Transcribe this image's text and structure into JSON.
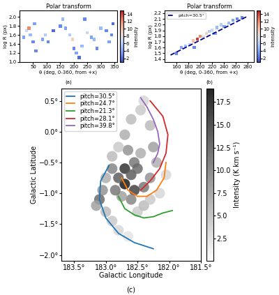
{
  "chart_data": [
    {
      "type": "scatter",
      "title": "Polar transform",
      "x_label": "θ (deg, 0-360, from +x)",
      "y_label": "log R (px)",
      "caption": "(a)",
      "xlim": [
        0,
        360
      ],
      "xticks": [
        50,
        100,
        150,
        200,
        250,
        300,
        350
      ],
      "ylim": [
        1.0,
        2.15
      ],
      "yticks": [
        1.0,
        1.2,
        1.4,
        1.6,
        1.8,
        2.0
      ],
      "points": {
        "x": [
          15,
          25,
          35,
          40,
          50,
          55,
          85,
          95,
          105,
          150,
          160,
          170,
          185,
          195,
          200,
          210,
          220,
          230,
          240,
          250,
          265,
          275,
          285,
          300,
          320,
          330,
          340,
          345,
          125,
          60
        ],
        "y": [
          1.55,
          1.7,
          1.75,
          1.6,
          1.45,
          1.85,
          1.5,
          1.6,
          1.45,
          1.8,
          1.95,
          1.75,
          1.6,
          1.5,
          1.3,
          1.2,
          1.1,
          1.35,
          1.95,
          1.65,
          1.55,
          1.5,
          1.3,
          1.75,
          1.7,
          1.45,
          1.6,
          1.85,
          1.7,
          1.25
        ],
        "intensity": [
          4,
          7,
          12,
          5,
          3,
          4,
          4,
          6,
          3,
          3,
          5,
          4,
          6,
          9,
          3,
          4,
          2,
          5,
          3,
          7,
          4,
          5,
          3,
          5,
          3,
          4,
          3,
          2,
          2,
          3
        ]
      },
      "colorbar": {
        "label": "Intensity",
        "range": [
          1,
          15
        ],
        "ticks": [
          2,
          4,
          6,
          8,
          10,
          12,
          14
        ]
      }
    },
    {
      "type": "scatter",
      "title": "Polar transform",
      "x_label": "θ (deg, 0-360, from +x)",
      "y_label": "log R (px)",
      "caption": "(b)",
      "xlim": [
        140,
        290
      ],
      "xticks": [
        160,
        180,
        200,
        220,
        240,
        260,
        280
      ],
      "ylim": [
        1.35,
        2.25
      ],
      "yticks": [
        1.4,
        1.5,
        1.6,
        1.7,
        1.8,
        1.9,
        2.0,
        2.1,
        2.2
      ],
      "points": {
        "x": [
          160,
          168,
          175,
          182,
          188,
          195,
          200,
          205,
          210,
          215,
          220,
          228,
          235,
          240,
          248,
          255,
          262,
          270,
          190,
          225
        ],
        "y": [
          1.5,
          1.6,
          1.62,
          1.65,
          1.72,
          1.75,
          1.8,
          1.78,
          1.85,
          1.88,
          1.9,
          1.95,
          2.0,
          1.97,
          2.03,
          2.08,
          2.1,
          2.12,
          1.6,
          1.85
        ],
        "intensity": [
          3,
          4,
          5,
          6,
          10,
          14,
          12,
          8,
          9,
          6,
          7,
          5,
          6,
          4,
          5,
          4,
          3,
          3,
          3,
          4
        ]
      },
      "series": [
        {
          "name": "pitch=30.5°",
          "color": "#00008b",
          "line_style": "dashed",
          "x": [
            150,
            280
          ],
          "y": [
            1.47,
            2.15
          ]
        }
      ],
      "legend": "upper left",
      "colorbar": {
        "label": "Intensity",
        "range": [
          1,
          15
        ],
        "ticks": [
          2,
          4,
          6,
          8,
          10,
          12,
          14
        ]
      }
    },
    {
      "type": "line",
      "x_label": "Galactic Longitude",
      "y_label": "Galactic Latitude",
      "caption": "(c)",
      "xlim": [
        183.7,
        181.5
      ],
      "xticks": [
        {
          "value": 183.5,
          "label": "183.5°"
        },
        {
          "value": 183.0,
          "label": "183.0°"
        },
        {
          "value": 182.5,
          "label": "182.5°"
        },
        {
          "value": 182.0,
          "label": "182.0°"
        },
        {
          "value": 181.5,
          "label": "181.5°"
        }
      ],
      "ylim": [
        -2.1,
        0.7
      ],
      "yticks": [
        {
          "value": -2.0,
          "label": "−2.0°"
        },
        {
          "value": -1.5,
          "label": "−1.5°"
        },
        {
          "value": -1.0,
          "label": "−1.0°"
        },
        {
          "value": -0.5,
          "label": "−0.5°"
        },
        {
          "value": 0.0,
          "label": "0.0°"
        },
        {
          "value": 0.5,
          "label": "0.5°"
        }
      ],
      "emission": {
        "x": [
          182.7,
          182.6,
          182.55,
          182.65,
          182.7,
          182.6,
          182.45,
          182.4,
          182.3,
          182.25,
          182.2,
          182.3,
          182.4,
          182.55,
          182.7,
          182.8,
          182.9,
          183.0,
          183.05,
          183.1,
          183.15,
          183.0,
          182.9,
          182.8,
          182.65,
          182.5,
          182.4,
          182.3,
          182.15,
          182.05,
          182.6,
          182.75,
          182.85,
          182.5,
          182.45,
          182.9,
          182.8
        ],
        "y": [
          -0.6,
          -0.7,
          -0.5,
          -0.3,
          -0.05,
          0.2,
          0.35,
          0.5,
          0.1,
          -0.25,
          -0.5,
          -0.75,
          -0.9,
          -0.95,
          -0.85,
          -0.75,
          -0.6,
          -0.75,
          -0.95,
          -1.1,
          -1.2,
          -1.3,
          -1.45,
          -1.6,
          -1.7,
          -1.3,
          -1.2,
          -1.1,
          -1.0,
          -0.7,
          -1.1,
          -1.05,
          -0.95,
          -0.6,
          -0.35,
          -0.4,
          -0.25
        ],
        "intensity": [
          15,
          12,
          10,
          8,
          6,
          5,
          4,
          3,
          5,
          7,
          6,
          8,
          10,
          14,
          17,
          12,
          9,
          6,
          8,
          11,
          7,
          5,
          4,
          3,
          2,
          4,
          5,
          4,
          3,
          3,
          9,
          7,
          10,
          11,
          6,
          5,
          4
        ]
      },
      "series": [
        {
          "name": "pitch=30.5°",
          "color": "#1f77b4",
          "x": [
            182.95,
            183.08,
            183.1,
            183.0,
            182.8,
            182.55,
            182.25
          ],
          "y": [
            -0.55,
            -0.8,
            -1.1,
            -1.4,
            -1.65,
            -1.8,
            -1.9
          ]
        },
        {
          "name": "pitch=24.7°",
          "color": "#ff7f0e",
          "x": [
            182.75,
            182.65,
            182.5,
            182.35,
            182.2,
            182.08,
            182.05
          ],
          "y": [
            -0.75,
            -0.95,
            -1.05,
            -1.05,
            -0.95,
            -0.75,
            -0.5
          ]
        },
        {
          "name": "pitch=21.3°",
          "color": "#2ca02c",
          "x": [
            182.8,
            182.7,
            182.55,
            182.4,
            182.25,
            182.1,
            181.95
          ],
          "y": [
            -1.05,
            -1.25,
            -1.35,
            -1.4,
            -1.38,
            -1.32,
            -1.28
          ]
        },
        {
          "name": "pitch=28.1°",
          "color": "#d62728",
          "x": [
            182.3,
            182.1,
            182.02,
            182.05,
            182.15,
            182.3,
            182.45
          ],
          "y": [
            0.5,
            0.25,
            -0.05,
            -0.35,
            -0.6,
            -0.8,
            -0.95
          ]
        },
        {
          "name": "pitch=39.8°",
          "color": "#9467bd",
          "x": [
            182.45,
            182.35,
            182.25,
            182.18,
            182.15,
            182.18,
            182.25
          ],
          "y": [
            0.55,
            0.4,
            0.2,
            0.0,
            -0.2,
            -0.35,
            -0.5
          ]
        }
      ],
      "legend": "upper left",
      "colorbar": {
        "label": "Intensity (K km s⁻¹)",
        "range": [
          0,
          19
        ],
        "ticks": [
          2.5,
          5.0,
          7.5,
          10.0,
          12.5,
          15.0,
          17.5
        ]
      }
    }
  ]
}
